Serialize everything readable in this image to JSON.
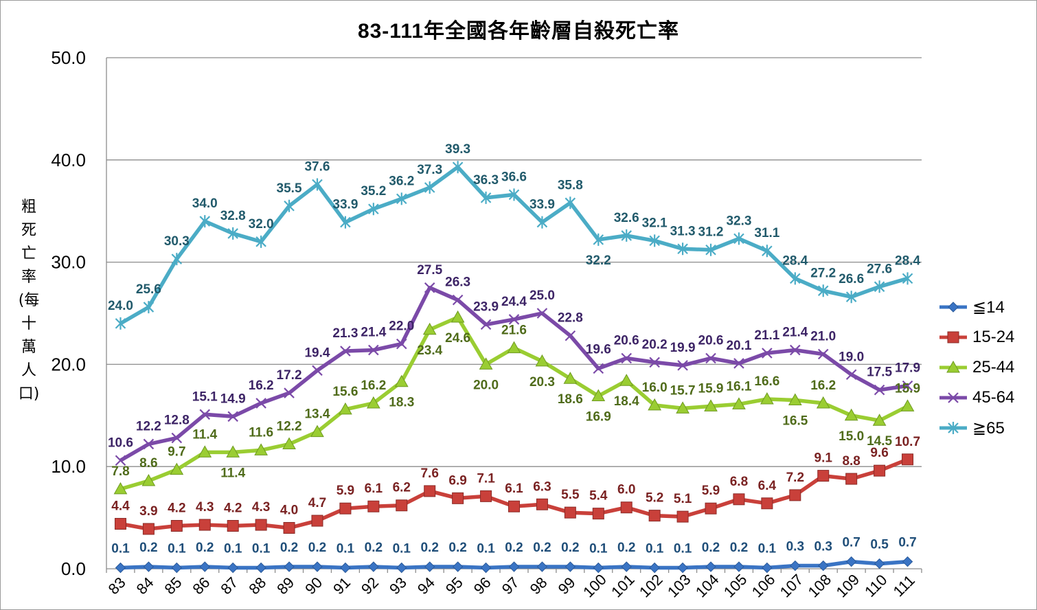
{
  "chart_data": {
    "type": "line",
    "title": "83-111年全國各年齡層自殺死亡率",
    "ylabel": "粗死亡率(每十萬人口)",
    "xlabel": "",
    "ylim": [
      0,
      50
    ],
    "yticks": [
      "0.0",
      "10.0",
      "20.0",
      "30.0",
      "40.0",
      "50.0"
    ],
    "grid": true,
    "legend_position": "right",
    "categories": [
      "83",
      "84",
      "85",
      "86",
      "87",
      "88",
      "89",
      "90",
      "91",
      "92",
      "93",
      "94",
      "95",
      "96",
      "97",
      "98",
      "99",
      "100",
      "101",
      "102",
      "103",
      "104",
      "105",
      "106",
      "107",
      "108",
      "109",
      "110",
      "111"
    ],
    "series": [
      {
        "name": "≦14",
        "color": "#3a74c4",
        "label_color": "#1f4e79",
        "marker": "diamond",
        "values": [
          0.1,
          0.2,
          0.1,
          0.2,
          0.1,
          0.1,
          0.2,
          0.2,
          0.1,
          0.2,
          0.1,
          0.2,
          0.2,
          0.1,
          0.2,
          0.2,
          0.2,
          0.1,
          0.2,
          0.1,
          0.1,
          0.2,
          0.2,
          0.1,
          0.3,
          0.3,
          0.7,
          0.5,
          0.7
        ]
      },
      {
        "name": "15-24",
        "color": "#c9403a",
        "label_color": "#7a2222",
        "marker": "square",
        "values": [
          4.4,
          3.9,
          4.2,
          4.3,
          4.2,
          4.3,
          4.0,
          4.7,
          5.9,
          6.1,
          6.2,
          7.6,
          6.9,
          7.1,
          6.1,
          6.3,
          5.5,
          5.4,
          6.0,
          5.2,
          5.1,
          5.9,
          6.8,
          6.4,
          7.2,
          9.1,
          8.8,
          9.6,
          10.7
        ]
      },
      {
        "name": "25-44",
        "color": "#9acd32",
        "label_color": "#4f6b1a",
        "marker": "triangle",
        "values": [
          7.8,
          8.6,
          9.7,
          11.4,
          11.4,
          11.6,
          12.2,
          13.4,
          15.6,
          16.2,
          18.3,
          23.4,
          24.6,
          20.0,
          21.6,
          20.3,
          18.6,
          16.9,
          18.4,
          16.0,
          15.7,
          15.9,
          16.1,
          16.6,
          16.5,
          16.2,
          15.0,
          14.5,
          15.9
        ]
      },
      {
        "name": "45-64",
        "color": "#7b4aa8",
        "label_color": "#3d2466",
        "marker": "x",
        "values": [
          10.6,
          12.2,
          12.8,
          15.1,
          14.9,
          16.2,
          17.2,
          19.4,
          21.3,
          21.4,
          22.0,
          27.5,
          26.3,
          23.9,
          24.4,
          25.0,
          22.8,
          19.6,
          20.6,
          20.2,
          19.9,
          20.6,
          20.1,
          21.1,
          21.4,
          21.0,
          19.0,
          17.5,
          17.9
        ]
      },
      {
        "name": "≧65",
        "color": "#4bacc6",
        "label_color": "#215a6b",
        "marker": "asterisk",
        "values": [
          24.0,
          25.6,
          30.3,
          34.0,
          32.8,
          32.0,
          35.5,
          37.6,
          33.9,
          35.2,
          36.2,
          37.3,
          39.3,
          36.3,
          36.6,
          33.9,
          35.8,
          32.2,
          32.6,
          32.1,
          31.3,
          31.2,
          32.3,
          31.1,
          28.4,
          27.2,
          26.6,
          27.6,
          28.4
        ]
      }
    ]
  }
}
